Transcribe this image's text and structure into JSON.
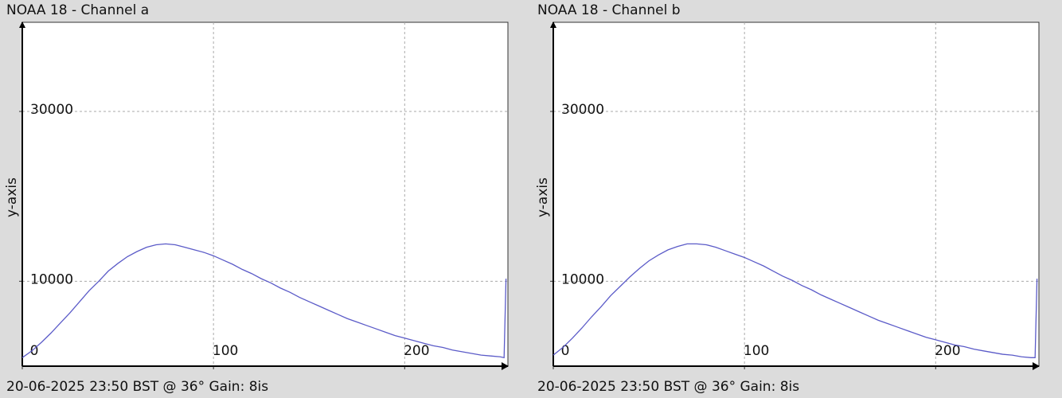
{
  "chart_data": [
    {
      "type": "line",
      "title": "NOAA 18 - Channel a",
      "y_label": "y-axis",
      "caption": "20-06-2025 23:50 BST @ 36° Gain: 8is",
      "xlim": [
        0,
        254
      ],
      "ylim": [
        0,
        40500
      ],
      "xticks": [
        0,
        100,
        200
      ],
      "yticks": [
        10000,
        30000
      ],
      "grid": true,
      "x": [
        0,
        5,
        10,
        15,
        20,
        25,
        30,
        35,
        40,
        45,
        50,
        55,
        60,
        65,
        70,
        75,
        80,
        85,
        90,
        95,
        100,
        105,
        110,
        115,
        120,
        125,
        130,
        135,
        140,
        145,
        150,
        155,
        160,
        165,
        170,
        175,
        180,
        185,
        190,
        195,
        200,
        205,
        210,
        215,
        220,
        225,
        230,
        235,
        240,
        245,
        250,
        252,
        253
      ],
      "series": [
        {
          "color": "#5b5bc8",
          "values": [
            1000,
            1800,
            2800,
            3900,
            5100,
            6300,
            7600,
            8900,
            10000,
            11200,
            12100,
            12900,
            13500,
            14000,
            14300,
            14400,
            14300,
            14000,
            13700,
            13400,
            13000,
            12500,
            12000,
            11400,
            10900,
            10300,
            9800,
            9200,
            8700,
            8100,
            7600,
            7100,
            6600,
            6100,
            5600,
            5200,
            4800,
            4400,
            4000,
            3600,
            3300,
            3000,
            2700,
            2400,
            2200,
            1900,
            1700,
            1500,
            1300,
            1200,
            1100,
            1000,
            10300
          ]
        }
      ]
    },
    {
      "type": "line",
      "title": "NOAA 18 - Channel b",
      "y_label": "y-axis",
      "caption": "20-06-2025 23:50 BST @ 36° Gain: 8is",
      "xlim": [
        0,
        254
      ],
      "ylim": [
        0,
        40500
      ],
      "xticks": [
        0,
        100,
        200
      ],
      "yticks": [
        10000,
        30000
      ],
      "grid": true,
      "x": [
        0,
        5,
        10,
        15,
        20,
        25,
        30,
        35,
        40,
        45,
        50,
        55,
        60,
        65,
        70,
        75,
        80,
        85,
        90,
        95,
        100,
        105,
        110,
        115,
        120,
        125,
        130,
        135,
        140,
        145,
        150,
        155,
        160,
        165,
        170,
        175,
        180,
        185,
        190,
        195,
        200,
        205,
        210,
        215,
        220,
        225,
        230,
        235,
        240,
        245,
        250,
        252,
        253
      ],
      "series": [
        {
          "color": "#5b5bc8",
          "values": [
            1300,
            2200,
            3300,
            4500,
            5800,
            7000,
            8300,
            9400,
            10500,
            11500,
            12400,
            13100,
            13700,
            14100,
            14400,
            14400,
            14300,
            14000,
            13600,
            13200,
            12800,
            12300,
            11800,
            11200,
            10600,
            10100,
            9500,
            9000,
            8400,
            7900,
            7400,
            6900,
            6400,
            5900,
            5400,
            5000,
            4600,
            4200,
            3800,
            3400,
            3100,
            2800,
            2500,
            2300,
            2000,
            1800,
            1600,
            1400,
            1300,
            1100,
            1000,
            1000,
            10300
          ]
        }
      ]
    }
  ]
}
